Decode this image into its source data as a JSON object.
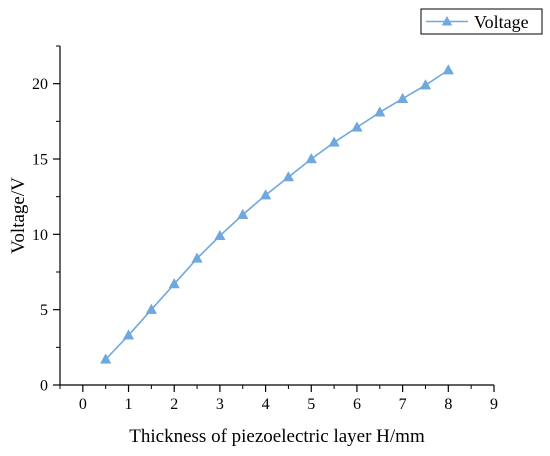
{
  "chart_data": {
    "type": "line",
    "xlabel": "Thickness of piezoelectric layer H/mm",
    "ylabel": "Voltage/V",
    "xlim": [
      -0.5,
      9
    ],
    "ylim": [
      0,
      22.5
    ],
    "xticks": [
      0,
      1,
      2,
      3,
      4,
      5,
      6,
      7,
      8,
      9
    ],
    "yticks": [
      0,
      5,
      10,
      15,
      20
    ],
    "legend_position": "top-right",
    "grid": false,
    "series": [
      {
        "name": "Voltage",
        "color": "#6fa8dc",
        "marker": "triangle",
        "x": [
          0.5,
          1,
          1.5,
          2,
          2.5,
          3,
          3.5,
          4,
          4.5,
          5,
          5.5,
          6,
          6.5,
          7,
          7.5,
          8
        ],
        "y": [
          1.7,
          3.3,
          5.0,
          6.7,
          8.4,
          9.9,
          11.3,
          12.6,
          13.8,
          15.0,
          16.1,
          17.1,
          18.1,
          19.0,
          19.9,
          20.9
        ]
      }
    ]
  }
}
